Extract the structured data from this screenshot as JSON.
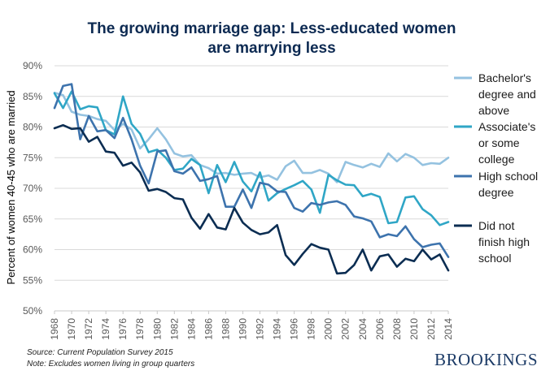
{
  "chart_data": {
    "type": "line",
    "title": [
      "The growing marriage gap: Less-educated women",
      "are marrying less"
    ],
    "ylabel": "Percent of women 40-45 who are married",
    "xlabel": "",
    "ylim": [
      50,
      90
    ],
    "yticks": [
      50,
      55,
      60,
      65,
      70,
      75,
      80,
      85,
      90
    ],
    "ytick_labels": [
      "50%",
      "55%",
      "60%",
      "65%",
      "70%",
      "75%",
      "80%",
      "85%",
      "90%"
    ],
    "xlim": [
      1968,
      2014
    ],
    "xticks": [
      1968,
      1970,
      1972,
      1974,
      1976,
      1978,
      1980,
      1982,
      1984,
      1986,
      1988,
      1990,
      1992,
      1994,
      1996,
      1998,
      2000,
      2002,
      2004,
      2006,
      2008,
      2010,
      2012,
      2014
    ],
    "x": [
      1968,
      1969,
      1970,
      1971,
      1972,
      1973,
      1974,
      1975,
      1976,
      1977,
      1978,
      1979,
      1980,
      1981,
      1982,
      1983,
      1984,
      1985,
      1986,
      1987,
      1988,
      1989,
      1990,
      1991,
      1992,
      1993,
      1994,
      1995,
      1996,
      1997,
      1998,
      1999,
      2000,
      2001,
      2002,
      2003,
      2004,
      2005,
      2006,
      2007,
      2008,
      2009,
      2010,
      2011,
      2012,
      2013,
      2014
    ],
    "series": [
      {
        "name": "Bachelor's degree and above",
        "legend_lines": [
          "Bachelor's",
          "degree and",
          "above"
        ],
        "color": "#94c2e0",
        "values": [
          85.6,
          85.2,
          82.5,
          82.0,
          81.8,
          81.3,
          81.0,
          79.5,
          80.5,
          79.6,
          76.5,
          78.0,
          79.8,
          78.0,
          75.7,
          75.2,
          75.4,
          73.8,
          73.3,
          72.4,
          72.5,
          72.2,
          72.4,
          72.5,
          71.8,
          72.1,
          71.4,
          73.6,
          74.5,
          72.5,
          72.5,
          73.0,
          72.4,
          71.0,
          74.3,
          73.8,
          73.4,
          74.0,
          73.5,
          75.7,
          74.4,
          75.6,
          75.0,
          73.8,
          74.1,
          74.0,
          75.0
        ]
      },
      {
        "name": "Associate's or some college",
        "legend_lines": [
          "Associate's",
          "or some",
          "college"
        ],
        "color": "#2fa6c6",
        "values": [
          85.5,
          83.1,
          85.8,
          82.9,
          83.4,
          83.2,
          79.5,
          78.8,
          85.0,
          80.5,
          78.9,
          75.9,
          76.3,
          75.0,
          73.0,
          73.2,
          74.8,
          73.8,
          69.2,
          73.8,
          71.0,
          74.3,
          71.1,
          69.5,
          72.6,
          68.0,
          69.2,
          69.9,
          70.5,
          71.2,
          69.8,
          66.0,
          72.2,
          71.3,
          70.6,
          70.5,
          68.7,
          69.1,
          68.6,
          64.3,
          64.5,
          68.5,
          68.7,
          66.6,
          65.6,
          64.0,
          64.5
        ]
      },
      {
        "name": "High school degree",
        "legend_lines": [
          "High school",
          "degree"
        ],
        "color": "#3d73ad",
        "values": [
          83.1,
          86.7,
          87.0,
          78.0,
          81.8,
          79.3,
          79.5,
          78.2,
          81.5,
          78.0,
          73.7,
          70.8,
          76.0,
          76.2,
          72.8,
          72.4,
          73.4,
          71.2,
          71.5,
          72.0,
          67.0,
          67.0,
          69.8,
          66.8,
          70.9,
          70.6,
          69.5,
          69.4,
          66.8,
          66.2,
          67.6,
          67.3,
          67.7,
          67.9,
          67.3,
          65.4,
          65.1,
          64.6,
          62.0,
          62.5,
          62.2,
          63.8,
          61.7,
          60.4,
          60.8,
          61.0,
          58.8
        ]
      },
      {
        "name": "Did not finish high school",
        "legend_lines": [
          "Did not",
          "finish high",
          "school"
        ],
        "color": "#0b2d52",
        "values": [
          79.8,
          80.3,
          79.7,
          79.8,
          77.6,
          78.4,
          76.0,
          75.8,
          73.7,
          74.2,
          72.6,
          69.6,
          69.9,
          69.4,
          68.4,
          68.2,
          65.2,
          63.4,
          65.8,
          63.6,
          63.3,
          66.8,
          64.4,
          63.2,
          62.5,
          62.8,
          64.0,
          59.1,
          57.5,
          59.3,
          60.9,
          60.3,
          60.0,
          56.1,
          56.2,
          57.5,
          60.0,
          56.6,
          58.9,
          59.2,
          57.2,
          58.5,
          58.1,
          60.0,
          58.4,
          59.2,
          56.6
        ]
      }
    ]
  },
  "footer": {
    "source": "Source: Current Population Survey 2015",
    "note": "Note: Excludes women living in group quarters",
    "brand": "BROOKINGS"
  }
}
